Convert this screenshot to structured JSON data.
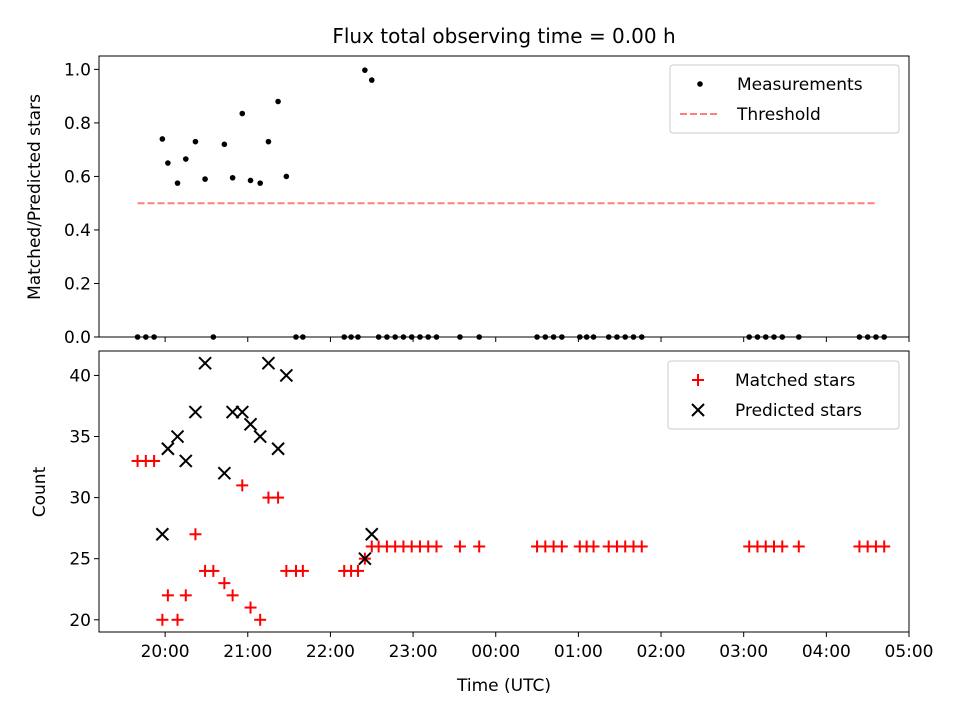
{
  "chart_data": [
    {
      "type": "scatter",
      "title": "Flux total observing time = 0.00 h",
      "xlabel": "",
      "ylabel": "Matched/Predicted stars",
      "ylim": [
        0,
        1.05
      ],
      "yticks": [
        0.0,
        0.2,
        0.4,
        0.6,
        0.8,
        1.0
      ],
      "ytick_labels": [
        "0.0",
        "0.2",
        "0.4",
        "0.6",
        "0.8",
        "1.0"
      ],
      "xlim": [
        "19:12",
        "05:00"
      ],
      "legend_position": "top-right",
      "legend": [
        "Measurements",
        "Threshold"
      ],
      "threshold": {
        "y": 0.5,
        "x": [
          "19:40",
          "04:36"
        ],
        "color": "#ff7f7f"
      },
      "series": [
        {
          "name": "Measurements",
          "marker": "dot",
          "color": "#000000",
          "points": [
            [
              "19:40",
              0
            ],
            [
              "19:46",
              0
            ],
            [
              "19:52",
              0
            ],
            [
              "19:58",
              0.74
            ],
            [
              "20:02",
              0.65
            ],
            [
              "20:09",
              0.575
            ],
            [
              "20:15",
              0.665
            ],
            [
              "20:22",
              0.73
            ],
            [
              "20:29",
              0.59
            ],
            [
              "20:35",
              0
            ],
            [
              "20:43",
              0.72
            ],
            [
              "20:49",
              0.595
            ],
            [
              "20:56",
              0.835
            ],
            [
              "21:02",
              0.585
            ],
            [
              "21:09",
              0.575
            ],
            [
              "21:15",
              0.73
            ],
            [
              "21:22",
              0.88
            ],
            [
              "21:28",
              0.6
            ],
            [
              "21:35",
              0
            ],
            [
              "21:40",
              0
            ],
            [
              "22:10",
              0
            ],
            [
              "22:15",
              0
            ],
            [
              "22:20",
              0
            ],
            [
              "22:25",
              0.997
            ],
            [
              "22:30",
              0.96
            ],
            [
              "22:35",
              0
            ],
            [
              "22:41",
              0
            ],
            [
              "22:47",
              0
            ],
            [
              "22:53",
              0
            ],
            [
              "22:59",
              0
            ],
            [
              "23:05",
              0
            ],
            [
              "23:11",
              0
            ],
            [
              "23:17",
              0
            ],
            [
              "23:34",
              0
            ],
            [
              "23:48",
              0
            ],
            [
              "00:30",
              0
            ],
            [
              "00:36",
              0
            ],
            [
              "00:42",
              0
            ],
            [
              "00:48",
              0
            ],
            [
              "01:01",
              0
            ],
            [
              "01:06",
              0
            ],
            [
              "01:11",
              0
            ],
            [
              "01:22",
              0
            ],
            [
              "01:28",
              0
            ],
            [
              "01:34",
              0
            ],
            [
              "01:40",
              0
            ],
            [
              "01:46",
              0
            ],
            [
              "03:04",
              0
            ],
            [
              "03:10",
              0
            ],
            [
              "03:16",
              0
            ],
            [
              "03:22",
              0
            ],
            [
              "03:28",
              0
            ],
            [
              "03:40",
              0
            ],
            [
              "04:24",
              0
            ],
            [
              "04:30",
              0
            ],
            [
              "04:36",
              0
            ],
            [
              "04:42",
              0
            ]
          ]
        }
      ]
    },
    {
      "type": "scatter",
      "title": "",
      "xlabel": "Time (UTC)",
      "ylabel": "Count",
      "ylim": [
        19,
        42
      ],
      "yticks": [
        20,
        25,
        30,
        35,
        40
      ],
      "ytick_labels": [
        "20",
        "25",
        "30",
        "35",
        "40"
      ],
      "xlim": [
        "19:12",
        "05:00"
      ],
      "xticks": [
        "20:00",
        "21:00",
        "22:00",
        "23:00",
        "00:00",
        "01:00",
        "02:00",
        "03:00",
        "04:00",
        "05:00"
      ],
      "legend_position": "top-right",
      "legend": [
        "Matched stars",
        "Predicted stars"
      ],
      "series": [
        {
          "name": "Matched stars",
          "marker": "plus",
          "color": "#ff0000",
          "points": [
            [
              "19:40",
              33
            ],
            [
              "19:46",
              33
            ],
            [
              "19:52",
              33
            ],
            [
              "19:58",
              20
            ],
            [
              "20:02",
              22
            ],
            [
              "20:09",
              20
            ],
            [
              "20:15",
              22
            ],
            [
              "20:22",
              27
            ],
            [
              "20:29",
              24
            ],
            [
              "20:35",
              24
            ],
            [
              "20:43",
              23
            ],
            [
              "20:49",
              22
            ],
            [
              "20:56",
              31
            ],
            [
              "21:02",
              21
            ],
            [
              "21:09",
              20
            ],
            [
              "21:15",
              30
            ],
            [
              "21:22",
              30
            ],
            [
              "21:28",
              24
            ],
            [
              "21:35",
              24
            ],
            [
              "21:40",
              24
            ],
            [
              "22:10",
              24
            ],
            [
              "22:15",
              24
            ],
            [
              "22:20",
              24
            ],
            [
              "22:25",
              25
            ],
            [
              "22:30",
              26
            ],
            [
              "22:35",
              26
            ],
            [
              "22:41",
              26
            ],
            [
              "22:47",
              26
            ],
            [
              "22:53",
              26
            ],
            [
              "22:59",
              26
            ],
            [
              "23:05",
              26
            ],
            [
              "23:11",
              26
            ],
            [
              "23:17",
              26
            ],
            [
              "23:34",
              26
            ],
            [
              "23:48",
              26
            ],
            [
              "00:30",
              26
            ],
            [
              "00:36",
              26
            ],
            [
              "00:42",
              26
            ],
            [
              "00:48",
              26
            ],
            [
              "01:01",
              26
            ],
            [
              "01:06",
              26
            ],
            [
              "01:11",
              26
            ],
            [
              "01:22",
              26
            ],
            [
              "01:28",
              26
            ],
            [
              "01:34",
              26
            ],
            [
              "01:40",
              26
            ],
            [
              "01:46",
              26
            ],
            [
              "03:04",
              26
            ],
            [
              "03:10",
              26
            ],
            [
              "03:16",
              26
            ],
            [
              "03:22",
              26
            ],
            [
              "03:28",
              26
            ],
            [
              "03:40",
              26
            ],
            [
              "04:24",
              26
            ],
            [
              "04:30",
              26
            ],
            [
              "04:36",
              26
            ],
            [
              "04:42",
              26
            ]
          ]
        },
        {
          "name": "Predicted stars",
          "marker": "x",
          "color": "#000000",
          "points": [
            [
              "19:58",
              27
            ],
            [
              "20:02",
              34
            ],
            [
              "20:09",
              35
            ],
            [
              "20:15",
              33
            ],
            [
              "20:22",
              37
            ],
            [
              "20:29",
              41
            ],
            [
              "20:43",
              32
            ],
            [
              "20:49",
              37
            ],
            [
              "20:56",
              37
            ],
            [
              "21:02",
              36
            ],
            [
              "21:09",
              35
            ],
            [
              "21:15",
              41
            ],
            [
              "21:22",
              34
            ],
            [
              "21:28",
              40
            ],
            [
              "22:25",
              25
            ],
            [
              "22:30",
              27
            ]
          ]
        }
      ]
    }
  ]
}
